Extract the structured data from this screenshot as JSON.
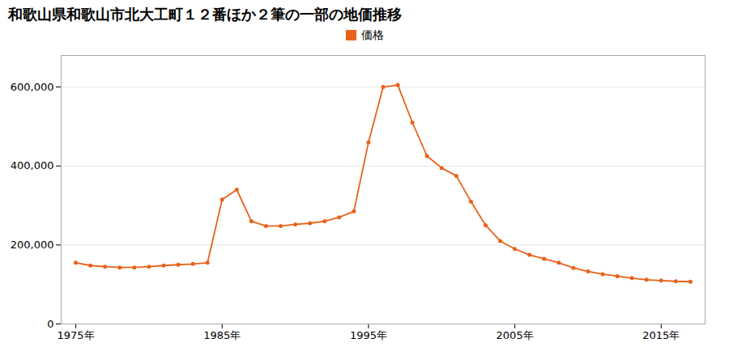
{
  "chart_data": {
    "type": "line",
    "title": "和歌山県和歌山市北大工町１２番ほか２筆の一部の地価推移",
    "x": [
      1975,
      1976,
      1977,
      1978,
      1979,
      1980,
      1981,
      1982,
      1983,
      1984,
      1985,
      1986,
      1987,
      1988,
      1989,
      1990,
      1991,
      1992,
      1993,
      1994,
      1995,
      1996,
      1997,
      1998,
      1999,
      2000,
      2001,
      2002,
      2003,
      2004,
      2005,
      2006,
      2007,
      2008,
      2009,
      2010,
      2011,
      2012,
      2013,
      2014,
      2015,
      2016,
      2017
    ],
    "series": [
      {
        "name": "価格",
        "color": "#E8621A",
        "marker": "circle",
        "values": [
          155000,
          148000,
          145000,
          143000,
          143000,
          145000,
          148000,
          150000,
          152000,
          155000,
          315000,
          340000,
          260000,
          248000,
          248000,
          252000,
          255000,
          260000,
          270000,
          285000,
          460000,
          600000,
          605000,
          510000,
          425000,
          395000,
          375000,
          310000,
          250000,
          210000,
          190000,
          175000,
          165000,
          155000,
          142000,
          133000,
          126000,
          121000,
          116000,
          112000,
          110000,
          108000,
          107000
        ]
      }
    ],
    "xlim": [
      1974,
      2018
    ],
    "xticks": [
      {
        "value": 1975,
        "label": "1975年"
      },
      {
        "value": 1985,
        "label": "1985年"
      },
      {
        "value": 1995,
        "label": "1995年"
      },
      {
        "value": 2005,
        "label": "2005年"
      },
      {
        "value": 2015,
        "label": "2015年"
      }
    ],
    "ylim": [
      0,
      680000
    ],
    "yticks": [
      0,
      {
        "value": 200000,
        "label": "200,000"
      },
      {
        "value": 400000,
        "label": "400,000"
      },
      {
        "value": 600000,
        "label": "600,000"
      }
    ],
    "grid": true,
    "legend": "top"
  }
}
